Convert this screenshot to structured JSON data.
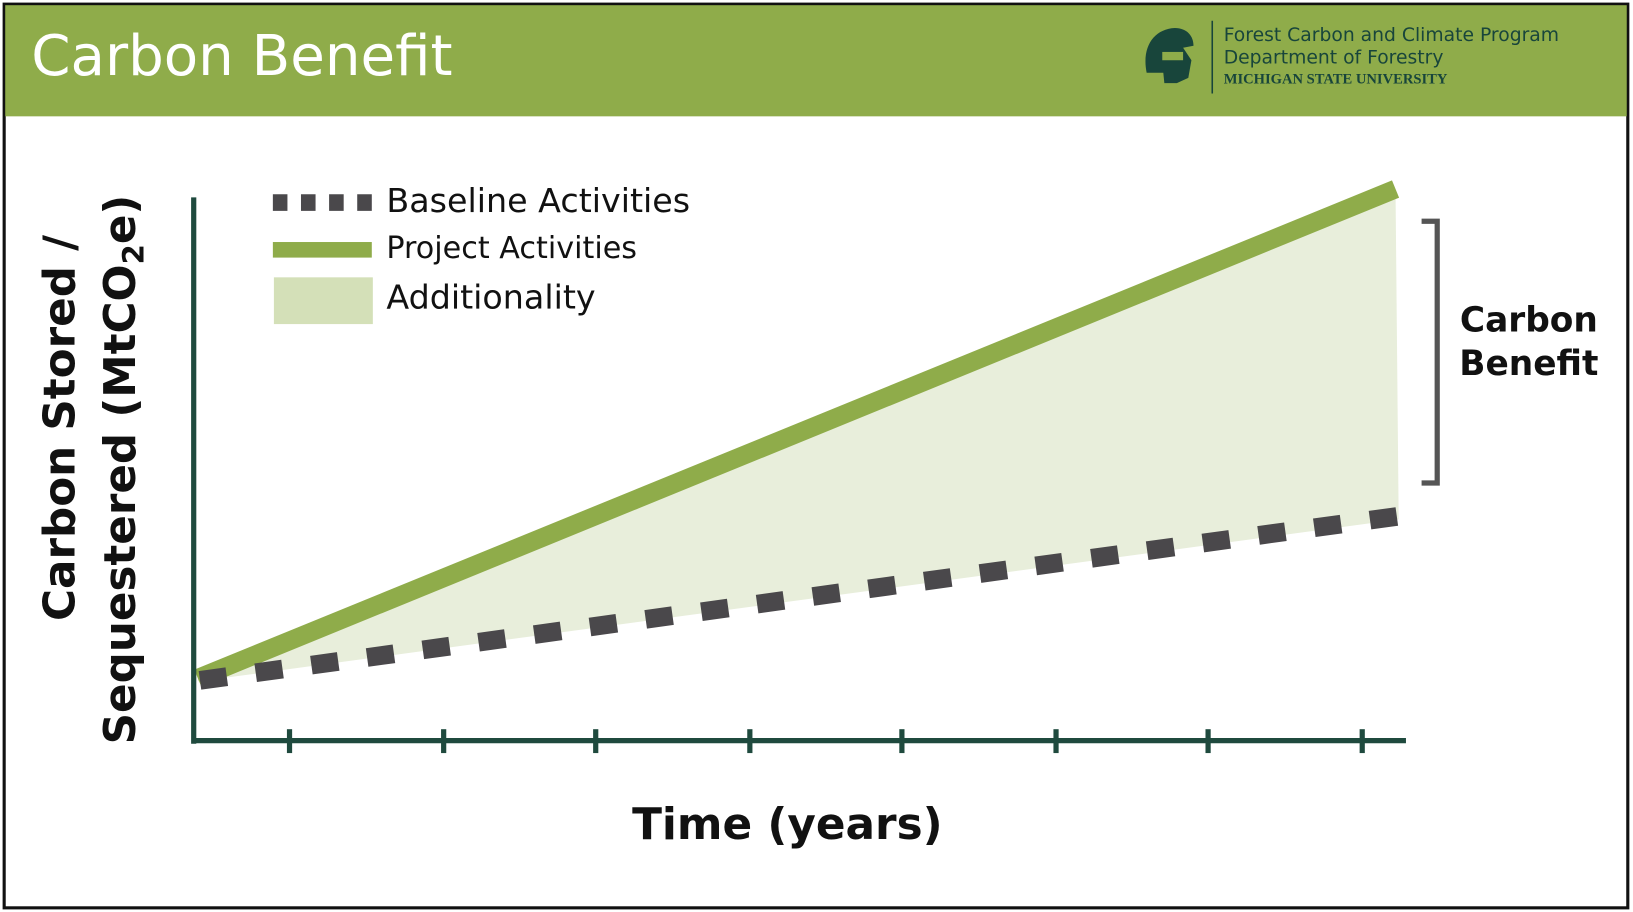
{
  "header": {
    "title": "Carbon Benefit",
    "org": [
      "Forest Carbon and Climate Program",
      "Department of Forestry",
      "MICHIGAN STATE UNIVERSITY"
    ]
  },
  "legend": [
    "Baseline Activities",
    "Project Activities",
    "Additionality"
  ],
  "y_axis_label": {
    "line1": "Carbon Stored /",
    "line2_start": "Sequestered (MtCO",
    "line2_sub": "2",
    "line2_end": "e)"
  },
  "x_axis_label": "Time (years)",
  "bracket_label": [
    "Carbon",
    "Benefit"
  ]
}
